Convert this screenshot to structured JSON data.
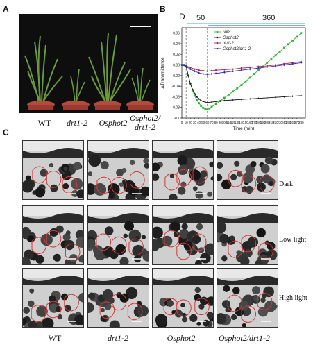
{
  "panels": {
    "A": "A",
    "B": "B",
    "C": "C"
  },
  "panelA": {
    "plants": [
      {
        "name": "WT",
        "italic": false
      },
      {
        "name": "drt1-2",
        "italic": true
      },
      {
        "name": "Osphot2",
        "italic": true
      },
      {
        "name": "Osphot2/\ndrt1-2",
        "italic": true
      }
    ]
  },
  "panelC": {
    "rows": [
      "Dark",
      "Low light",
      "High light"
    ],
    "columns": [
      "WT",
      "drt1-2",
      "Osphot2",
      "Osphot2/drt1-2"
    ]
  },
  "colors": {
    "NIP": "#2db82d",
    "Osphot2": "#111111",
    "drt1-2": "#b0224b",
    "Osphot2/drt1-2": "#2a2ac0",
    "light_bar": "#7fd0d0",
    "cell_outline": "#d23a3a"
  },
  "chart_data": {
    "type": "line",
    "panel_letter": "D",
    "top_labels": [
      "50",
      "360"
    ],
    "xlabel": "Time (min)",
    "ylabel": "ΔTransmittance",
    "xlim": [
      0,
      290
    ],
    "ylim": [
      -0.1,
      0.07
    ],
    "xticks": [
      0,
      10,
      20,
      30,
      40,
      50,
      60,
      70,
      80,
      90,
      100,
      110,
      120,
      130,
      140,
      150,
      160,
      170,
      180,
      190,
      200,
      210,
      220,
      230,
      240,
      250,
      260,
      270,
      280
    ],
    "yticks": [
      0.06,
      0.04,
      0.02,
      0.0,
      -0.02,
      -0.04,
      -0.06,
      -0.08,
      -0.1
    ],
    "ytick_labels": [
      "0.06",
      "0.04",
      "0.02",
      "0.00",
      "-0.02",
      "-0.04",
      "-0.06",
      "-0.08",
      "-0.1"
    ],
    "dashed_lines_x": [
      10,
      60
    ],
    "series": [
      {
        "name": "NIP",
        "x": [
          0,
          5,
          10,
          15,
          20,
          25,
          30,
          35,
          40,
          45,
          50,
          55,
          60,
          65,
          70,
          80,
          90,
          100,
          110,
          120,
          130,
          140,
          150,
          160,
          170,
          180,
          190,
          200,
          210,
          220,
          230,
          240,
          250,
          260,
          270,
          280
        ],
        "y": [
          0,
          0,
          -0.002,
          -0.02,
          -0.035,
          -0.048,
          -0.058,
          -0.066,
          -0.072,
          -0.077,
          -0.081,
          -0.083,
          -0.084,
          -0.082,
          -0.079,
          -0.074,
          -0.068,
          -0.062,
          -0.056,
          -0.05,
          -0.044,
          -0.038,
          -0.031,
          -0.024,
          -0.017,
          -0.01,
          -0.003,
          0.004,
          0.011,
          0.018,
          0.025,
          0.032,
          0.039,
          0.046,
          0.053,
          0.06
        ]
      },
      {
        "name": "Osphot2",
        "x": [
          0,
          5,
          10,
          15,
          20,
          25,
          30,
          35,
          40,
          45,
          50,
          55,
          60,
          70,
          80,
          90,
          100,
          120,
          140,
          160,
          180,
          200,
          220,
          240,
          260,
          280
        ],
        "y": [
          0,
          0,
          -0.002,
          -0.02,
          -0.035,
          -0.046,
          -0.054,
          -0.06,
          -0.064,
          -0.067,
          -0.069,
          -0.07,
          -0.071,
          -0.07,
          -0.069,
          -0.068,
          -0.067,
          -0.066,
          -0.065,
          -0.064,
          -0.063,
          -0.062,
          -0.061,
          -0.06,
          -0.059,
          -0.058
        ]
      },
      {
        "name": "drt1-2",
        "x": [
          0,
          10,
          20,
          30,
          40,
          50,
          60,
          70,
          80,
          100,
          120,
          140,
          160,
          180,
          200,
          220,
          240,
          260,
          280
        ],
        "y": [
          0,
          -0.002,
          -0.005,
          -0.008,
          -0.01,
          -0.011,
          -0.012,
          -0.011,
          -0.01,
          -0.009,
          -0.008,
          -0.006,
          -0.005,
          -0.003,
          -0.002,
          -0.0,
          0.002,
          0.004,
          0.006
        ]
      },
      {
        "name": "Osphot2/drt1-2",
        "x": [
          0,
          10,
          20,
          30,
          40,
          50,
          60,
          70,
          80,
          100,
          120,
          140,
          160,
          180,
          200,
          220,
          240,
          260,
          280
        ],
        "y": [
          0,
          -0.003,
          -0.008,
          -0.012,
          -0.015,
          -0.017,
          -0.018,
          -0.017,
          -0.016,
          -0.014,
          -0.012,
          -0.01,
          -0.008,
          -0.006,
          -0.004,
          -0.002,
          0.0,
          0.002,
          0.004
        ]
      }
    ],
    "legend_position": "top-left"
  }
}
